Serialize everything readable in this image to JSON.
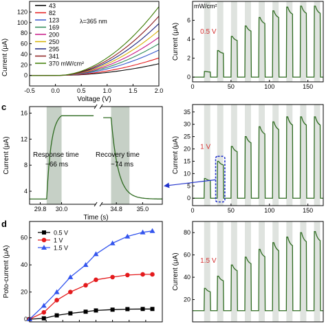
{
  "panel_c_letter": "c",
  "panel_d_letter": "d",
  "chart_data": [
    {
      "id": "a",
      "type": "line",
      "xlabel": "Voltage (V)",
      "ylabel": "Current (μA)",
      "xlim": [
        -0.5,
        2.0
      ],
      "ylim": [
        -20,
        140
      ],
      "xticks": [
        -0.5,
        0.0,
        0.5,
        1.0,
        1.5,
        2.0
      ],
      "xtick_labels": [
        "-0.5",
        "0.0",
        "0.5",
        "1.0",
        "1.5",
        "2.0"
      ],
      "yticks": [
        0,
        20,
        40,
        60,
        80,
        100,
        120
      ],
      "ytick_labels": [
        "0",
        "20",
        "40",
        "60",
        "80",
        "100",
        "120"
      ],
      "annotation": "λ=365 nm",
      "legend_placement": "top-left",
      "series": [
        {
          "name": "43",
          "color": "#000000",
          "end_value": 22
        },
        {
          "name": "82",
          "color": "#e41a1c",
          "end_value": 33
        },
        {
          "name": "123",
          "color": "#3355cc",
          "end_value": 48
        },
        {
          "name": "169",
          "color": "#2e8b57",
          "end_value": 60
        },
        {
          "name": "200",
          "color": "#c71585",
          "end_value": 72
        },
        {
          "name": "250",
          "color": "#d4b000",
          "end_value": 85
        },
        {
          "name": "295",
          "color": "#1a237e",
          "end_value": 98
        },
        {
          "name": "341",
          "color": "#8b1a1a",
          "end_value": 112
        },
        {
          "name": "370 mW/cm²",
          "color": "#3a7a00",
          "end_value": 130
        }
      ]
    },
    {
      "id": "b",
      "type": "line",
      "xlabel": "",
      "ylabel": "Current (μA)",
      "xlim": [
        0,
        170
      ],
      "ylim": [
        -0.5,
        8
      ],
      "xticks": [
        0,
        50,
        100,
        150
      ],
      "xtick_labels": [
        "0",
        "50",
        "100",
        "150"
      ],
      "yticks": [
        0,
        2,
        4,
        6
      ],
      "ytick_labels": [
        "0",
        "2",
        "4",
        "6"
      ],
      "unit_label": "mW/cm²",
      "bias_label": "0.5 V",
      "line_color": "#2d6a1f",
      "pulse_starts": [
        15,
        32,
        50,
        68,
        86,
        104,
        122,
        140,
        158
      ],
      "pulse_width": 8,
      "peaks": [
        0.6,
        2.8,
        4.3,
        5.4,
        6.3,
        7.0,
        7.4,
        7.5,
        7.5
      ]
    },
    {
      "id": "c",
      "type": "line",
      "xlabel": "Time (s)",
      "ylabel": "Current (μA)",
      "ylim": [
        2,
        17
      ],
      "yticks": [
        4,
        8,
        12,
        16
      ],
      "ytick_labels": [
        "4",
        "8",
        "12",
        "16"
      ],
      "segments": [
        {
          "xlim": [
            29.7,
            30.3
          ],
          "xticks": [
            29.8,
            30.0
          ],
          "xtick_labels": [
            "29.8",
            "30.0"
          ]
        },
        {
          "xlim": [
            34.7,
            35.15
          ],
          "xticks": [
            34.8,
            35.0
          ],
          "xtick_labels": [
            "34.8",
            "35.0"
          ]
        }
      ],
      "rise": {
        "start": 29.86,
        "end": 30.0
      },
      "decay": {
        "start": 34.76,
        "end": 34.9
      },
      "base_value": 2.8,
      "high_value": 15.6,
      "annotations": [
        "Response time",
        "~66 ms",
        "Recovery time",
        "~74 ms"
      ],
      "line_color": "#2d6a1f"
    },
    {
      "id": "c-right",
      "type": "line",
      "xlabel": "",
      "ylabel": "Current (μA)",
      "xlim": [
        0,
        170
      ],
      "ylim": [
        -3,
        38
      ],
      "xticks": [
        0,
        50,
        100,
        150
      ],
      "xtick_labels": [
        "0",
        "50",
        "100",
        "150"
      ],
      "yticks": [
        0,
        5,
        10,
        15,
        20,
        25,
        30,
        35
      ],
      "ytick_labels": [
        "0",
        "5",
        "10",
        "15",
        "20",
        "25",
        "30",
        "35"
      ],
      "bias_label": "1 V",
      "line_color": "#2d6a1f",
      "pulse_starts": [
        15,
        32,
        50,
        68,
        86,
        104,
        122,
        140,
        158
      ],
      "pulse_width": 8,
      "peaks": [
        8,
        15,
        21,
        25,
        29,
        31,
        33,
        33,
        33
      ]
    },
    {
      "id": "d-right",
      "type": "line",
      "xlabel": "",
      "ylabel": "Current (μA)",
      "xlim": [
        0,
        170
      ],
      "ylim": [
        0,
        90
      ],
      "yticks": [
        20,
        40,
        60,
        80
      ],
      "ytick_labels": [
        "20",
        "40",
        "60",
        "80"
      ],
      "bias_label": "1.5 V",
      "line_color": "#2d6a1f",
      "pulse_starts": [
        15,
        32,
        50,
        68,
        86,
        104,
        122,
        140,
        158
      ],
      "pulse_width": 8,
      "peaks": [
        30,
        41,
        51,
        58,
        65,
        71,
        76,
        80,
        81
      ],
      "base_value": 10
    },
    {
      "id": "d",
      "type": "line",
      "xlabel": "",
      "ylabel": "Poto-current (μA)",
      "xlim": [
        0,
        400
      ],
      "ylim": [
        -2,
        72
      ],
      "yticks": [
        0,
        20,
        40,
        60
      ],
      "ytick_labels": [
        "0",
        "20",
        "40",
        "60"
      ],
      "legend_placement": "top-left",
      "x": [
        0,
        43,
        82,
        123,
        169,
        200,
        250,
        295,
        341,
        370
      ],
      "series": [
        {
          "name": "0.5 V",
          "color": "#000000",
          "marker": "square",
          "values": [
            0,
            0.6,
            2.8,
            4.3,
            5.5,
            6.4,
            7.0,
            7.4,
            7.5,
            7.5
          ]
        },
        {
          "name": "1 V",
          "color": "#e41a1c",
          "marker": "circle",
          "values": [
            0,
            5,
            14,
            20,
            25,
            29,
            31,
            32.5,
            33,
            33
          ]
        },
        {
          "name": "1.5 V",
          "color": "#3355ee",
          "marker": "triangle",
          "values": [
            0,
            10,
            20,
            31,
            40,
            48,
            56,
            61,
            64,
            65
          ]
        }
      ]
    }
  ]
}
